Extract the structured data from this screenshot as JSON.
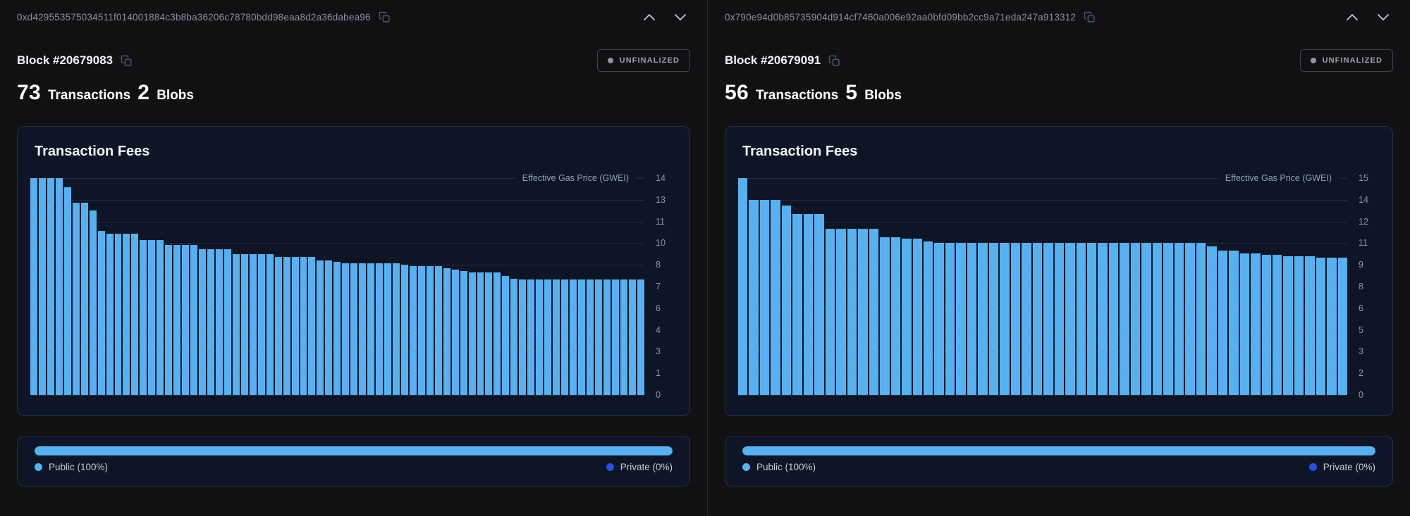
{
  "colors": {
    "page_background": "#111114",
    "card_background": "#0d1526",
    "card_border": "#243048",
    "bar_color": "#55b1f0",
    "public_dot": "#55b1f0",
    "private_dot": "#2453df",
    "hash_text": "#8a92a3",
    "badge_text": "#98a1b0"
  },
  "panels": [
    {
      "hash": "0xd429553575034511f014001884c3b8ba36206c78780bdd98eaa8d2a36dabea96",
      "block_label": "Block #20679083",
      "status": "UNFINALIZED",
      "tx_count": "73",
      "tx_label": "Transactions",
      "blob_count": "2",
      "blob_label": "Blobs",
      "chart": {
        "type": "bar",
        "title": "Transaction Fees",
        "axis_label": "Effective Gas Price (GWEI)",
        "ylabel": "Effective Gas Price (GWEI)",
        "ylim": [
          0,
          14
        ],
        "grid": true,
        "ticks": [
          "14",
          "13",
          "11",
          "10",
          "8",
          "7",
          "6",
          "4",
          "3",
          "1",
          "0"
        ],
        "values": [
          14,
          14,
          14,
          14,
          13.4,
          12.4,
          12.4,
          11.9,
          10.6,
          10.4,
          10.4,
          10.4,
          10.4,
          10,
          10,
          10,
          9.7,
          9.7,
          9.7,
          9.7,
          9.4,
          9.4,
          9.4,
          9.4,
          9.1,
          9.1,
          9.1,
          9.1,
          9.1,
          8.9,
          8.9,
          8.9,
          8.9,
          8.9,
          8.7,
          8.7,
          8.6,
          8.5,
          8.5,
          8.5,
          8.5,
          8.5,
          8.5,
          8.5,
          8.4,
          8.3,
          8.3,
          8.3,
          8.3,
          8.2,
          8.1,
          8,
          7.9,
          7.9,
          7.9,
          7.9,
          7.7,
          7.5,
          7.45,
          7.45,
          7.45,
          7.45,
          7.45,
          7.45,
          7.45,
          7.45,
          7.45,
          7.45,
          7.45,
          7.45,
          7.45,
          7.45,
          7.45
        ]
      },
      "privacy": {
        "public_label": "Public (100%)",
        "private_label": "Private (0%)",
        "public_pct": 100
      }
    },
    {
      "hash": "0x790e94d0b85735904d914cf7460a006e92aa0bfd09bb2cc9a71eda247a913312",
      "block_label": "Block #20679091",
      "status": "UNFINALIZED",
      "tx_count": "56",
      "tx_label": "Transactions",
      "blob_count": "5",
      "blob_label": "Blobs",
      "chart": {
        "type": "bar",
        "title": "Transaction Fees",
        "axis_label": "Effective Gas Price (GWEI)",
        "ylabel": "Effective Gas Price (GWEI)",
        "ylim": [
          0,
          15
        ],
        "grid": true,
        "ticks": [
          "15",
          "14",
          "12",
          "11",
          "9",
          "8",
          "6",
          "5",
          "3",
          "2",
          "0"
        ],
        "values": [
          15,
          13.5,
          13.5,
          13.5,
          13.1,
          12.5,
          12.5,
          12.5,
          11.5,
          11.5,
          11.5,
          11.5,
          11.5,
          10.9,
          10.9,
          10.8,
          10.8,
          10.6,
          10.5,
          10.5,
          10.5,
          10.5,
          10.5,
          10.5,
          10.5,
          10.5,
          10.5,
          10.5,
          10.5,
          10.5,
          10.5,
          10.5,
          10.5,
          10.5,
          10.5,
          10.5,
          10.5,
          10.5,
          10.5,
          10.5,
          10.5,
          10.5,
          10.5,
          10.3,
          10,
          10,
          9.8,
          9.8,
          9.7,
          9.7,
          9.6,
          9.6,
          9.6,
          9.5,
          9.5,
          9.5
        ]
      },
      "privacy": {
        "public_label": "Public (100%)",
        "private_label": "Private (0%)",
        "public_pct": 100
      }
    }
  ]
}
